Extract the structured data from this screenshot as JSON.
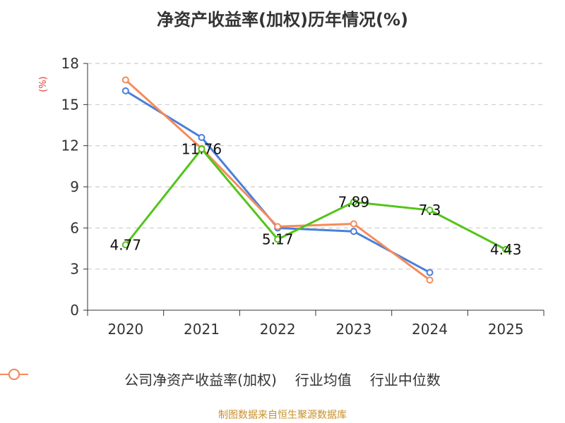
{
  "chart_data": {
    "type": "line",
    "title": "净资产收益率(加权)历年情况(%)",
    "ylabel": "(%)",
    "categories": [
      "2020",
      "2021",
      "2022",
      "2023",
      "2024",
      "2025"
    ],
    "ylim": [
      0,
      18
    ],
    "yticks": [
      0,
      3,
      6,
      9,
      12,
      15,
      18
    ],
    "grid": true,
    "legend_position": "bottom",
    "series": [
      {
        "name": "公司净资产收益率(加权)",
        "color": "#52c41a",
        "values": [
          4.77,
          11.76,
          5.17,
          7.89,
          7.3,
          4.43
        ],
        "labels": [
          "4.77",
          "11.76",
          "5.17",
          "7.89",
          "7.3",
          "4.43"
        ]
      },
      {
        "name": "行业均值",
        "color": "#4a7fdb",
        "values": [
          16.0,
          12.6,
          6.0,
          5.75,
          2.75,
          null
        ]
      },
      {
        "name": "行业中位数",
        "color": "#f58b5a",
        "values": [
          16.8,
          11.8,
          6.1,
          6.3,
          2.2,
          null
        ]
      }
    ]
  },
  "source": "制图数据来自恒生聚源数据库"
}
